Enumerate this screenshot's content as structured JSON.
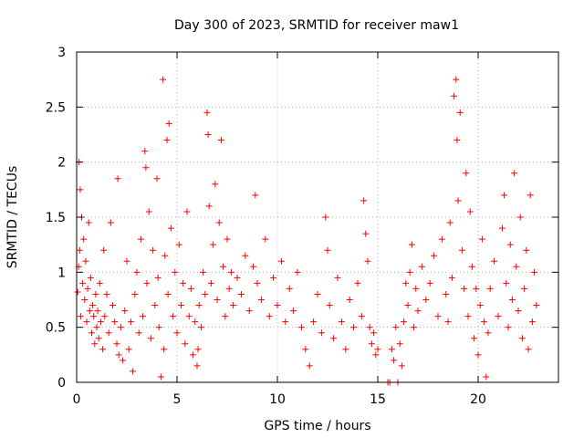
{
  "chart_data": {
    "type": "scatter",
    "title": "Day 300 of 2023, SRMTID for receiver maw1",
    "xlabel": "GPS time / hours",
    "ylabel": "SRMTID / TECUs",
    "xlim": [
      0,
      24
    ],
    "ylim": [
      0,
      3
    ],
    "xticks": [
      "0",
      "5",
      "10",
      "15",
      "20"
    ],
    "yticks": [
      "0",
      "0.5",
      "1",
      "1.5",
      "2",
      "2.5",
      "3"
    ],
    "xtick_values": [
      0,
      5,
      10,
      15,
      20
    ],
    "ytick_values": [
      0,
      0.5,
      1,
      1.5,
      2,
      2.5,
      3
    ],
    "grid": true,
    "marker": "plus",
    "series": [
      {
        "name": "SRMTID",
        "color": "#ff0000",
        "points": [
          [
            0.05,
            0.82
          ],
          [
            0.1,
            1.05
          ],
          [
            0.12,
            2.0
          ],
          [
            0.15,
            1.2
          ],
          [
            0.18,
            1.75
          ],
          [
            0.2,
            0.6
          ],
          [
            0.25,
            1.5
          ],
          [
            0.3,
            0.9
          ],
          [
            0.35,
            1.3
          ],
          [
            0.4,
            0.75
          ],
          [
            0.45,
            1.1
          ],
          [
            0.5,
            0.55
          ],
          [
            0.55,
            0.85
          ],
          [
            0.6,
            1.45
          ],
          [
            0.65,
            0.65
          ],
          [
            0.7,
            0.95
          ],
          [
            0.75,
            0.45
          ],
          [
            0.8,
            0.7
          ],
          [
            0.85,
            0.6
          ],
          [
            0.9,
            0.35
          ],
          [
            0.95,
            0.8
          ],
          [
            1.0,
            0.5
          ],
          [
            1.05,
            0.65
          ],
          [
            1.1,
            0.4
          ],
          [
            1.15,
            0.9
          ],
          [
            1.2,
            0.55
          ],
          [
            1.3,
            0.3
          ],
          [
            1.35,
            1.2
          ],
          [
            1.4,
            0.6
          ],
          [
            1.5,
            0.8
          ],
          [
            1.6,
            0.45
          ],
          [
            1.7,
            1.45
          ],
          [
            1.8,
            0.7
          ],
          [
            1.9,
            0.55
          ],
          [
            2.0,
            0.35
          ],
          [
            2.05,
            1.85
          ],
          [
            2.1,
            0.25
          ],
          [
            2.2,
            0.5
          ],
          [
            2.3,
            0.2
          ],
          [
            2.4,
            0.65
          ],
          [
            2.5,
            1.1
          ],
          [
            2.6,
            0.3
          ],
          [
            2.7,
            0.55
          ],
          [
            2.8,
            0.1
          ],
          [
            2.9,
            0.8
          ],
          [
            3.0,
            1.0
          ],
          [
            3.1,
            0.45
          ],
          [
            3.2,
            1.3
          ],
          [
            3.3,
            0.6
          ],
          [
            3.4,
            2.1
          ],
          [
            3.45,
            1.95
          ],
          [
            3.5,
            0.9
          ],
          [
            3.6,
            1.55
          ],
          [
            3.7,
            0.4
          ],
          [
            3.8,
            1.2
          ],
          [
            3.9,
            0.7
          ],
          [
            4.0,
            1.85
          ],
          [
            4.05,
            0.95
          ],
          [
            4.1,
            0.5
          ],
          [
            4.2,
            0.05
          ],
          [
            4.3,
            2.75
          ],
          [
            4.35,
            0.3
          ],
          [
            4.4,
            1.15
          ],
          [
            4.5,
            2.2
          ],
          [
            4.55,
            0.8
          ],
          [
            4.6,
            2.35
          ],
          [
            4.7,
            1.4
          ],
          [
            4.8,
            0.6
          ],
          [
            4.9,
            1.0
          ],
          [
            5.0,
            0.45
          ],
          [
            5.1,
            1.25
          ],
          [
            5.2,
            0.7
          ],
          [
            5.3,
            0.9
          ],
          [
            5.4,
            0.35
          ],
          [
            5.5,
            1.55
          ],
          [
            5.6,
            0.6
          ],
          [
            5.7,
            0.85
          ],
          [
            5.8,
            0.25
          ],
          [
            5.9,
            0.55
          ],
          [
            6.0,
            0.15
          ],
          [
            6.05,
            0.3
          ],
          [
            6.1,
            0.7
          ],
          [
            6.2,
            0.5
          ],
          [
            6.3,
            1.0
          ],
          [
            6.4,
            0.8
          ],
          [
            6.5,
            2.45
          ],
          [
            6.55,
            2.25
          ],
          [
            6.6,
            1.6
          ],
          [
            6.7,
            0.9
          ],
          [
            6.8,
            1.25
          ],
          [
            6.9,
            1.8
          ],
          [
            7.0,
            0.75
          ],
          [
            7.1,
            1.45
          ],
          [
            7.2,
            2.2
          ],
          [
            7.3,
            1.05
          ],
          [
            7.4,
            0.6
          ],
          [
            7.5,
            1.3
          ],
          [
            7.6,
            0.85
          ],
          [
            7.7,
            1.0
          ],
          [
            7.8,
            0.7
          ],
          [
            8.0,
            0.95
          ],
          [
            8.2,
            0.8
          ],
          [
            8.4,
            1.15
          ],
          [
            8.6,
            0.65
          ],
          [
            8.8,
            1.05
          ],
          [
            8.9,
            1.7
          ],
          [
            9.0,
            0.9
          ],
          [
            9.2,
            0.75
          ],
          [
            9.4,
            1.3
          ],
          [
            9.6,
            0.6
          ],
          [
            9.8,
            0.95
          ],
          [
            10.0,
            0.7
          ],
          [
            10.2,
            1.1
          ],
          [
            10.4,
            0.55
          ],
          [
            10.6,
            0.85
          ],
          [
            10.8,
            0.65
          ],
          [
            11.0,
            1.0
          ],
          [
            11.2,
            0.5
          ],
          [
            11.4,
            0.3
          ],
          [
            11.6,
            0.15
          ],
          [
            11.8,
            0.55
          ],
          [
            12.0,
            0.8
          ],
          [
            12.2,
            0.45
          ],
          [
            12.4,
            1.5
          ],
          [
            12.5,
            1.2
          ],
          [
            12.6,
            0.7
          ],
          [
            12.8,
            0.4
          ],
          [
            13.0,
            0.95
          ],
          [
            13.2,
            0.55
          ],
          [
            13.4,
            0.3
          ],
          [
            13.6,
            0.75
          ],
          [
            13.8,
            0.5
          ],
          [
            14.0,
            0.9
          ],
          [
            14.2,
            0.6
          ],
          [
            14.3,
            1.65
          ],
          [
            14.4,
            1.35
          ],
          [
            14.5,
            1.1
          ],
          [
            14.6,
            0.5
          ],
          [
            14.7,
            0.35
          ],
          [
            14.8,
            0.45
          ],
          [
            14.9,
            0.25
          ],
          [
            15.0,
            0.3
          ],
          [
            15.5,
            0.0
          ],
          [
            15.6,
            0.0
          ],
          [
            15.7,
            0.3
          ],
          [
            15.8,
            0.2
          ],
          [
            15.9,
            0.5
          ],
          [
            16.0,
            0.0
          ],
          [
            16.1,
            0.35
          ],
          [
            16.2,
            0.15
          ],
          [
            16.3,
            0.55
          ],
          [
            16.4,
            0.9
          ],
          [
            16.5,
            0.7
          ],
          [
            16.6,
            1.0
          ],
          [
            16.7,
            1.25
          ],
          [
            16.8,
            0.5
          ],
          [
            16.9,
            0.85
          ],
          [
            17.0,
            0.65
          ],
          [
            17.2,
            1.05
          ],
          [
            17.4,
            0.75
          ],
          [
            17.6,
            0.9
          ],
          [
            17.8,
            1.15
          ],
          [
            18.0,
            0.6
          ],
          [
            18.2,
            1.3
          ],
          [
            18.4,
            0.8
          ],
          [
            18.5,
            0.55
          ],
          [
            18.6,
            1.45
          ],
          [
            18.7,
            0.95
          ],
          [
            18.8,
            2.6
          ],
          [
            18.9,
            2.75
          ],
          [
            18.95,
            2.2
          ],
          [
            19.0,
            1.65
          ],
          [
            19.1,
            2.45
          ],
          [
            19.2,
            1.2
          ],
          [
            19.3,
            0.85
          ],
          [
            19.4,
            1.9
          ],
          [
            19.5,
            0.6
          ],
          [
            19.6,
            1.55
          ],
          [
            19.7,
            1.05
          ],
          [
            19.8,
            0.4
          ],
          [
            19.9,
            0.85
          ],
          [
            20.0,
            0.25
          ],
          [
            20.1,
            0.7
          ],
          [
            20.2,
            1.3
          ],
          [
            20.3,
            0.55
          ],
          [
            20.4,
            0.05
          ],
          [
            20.5,
            0.45
          ],
          [
            20.6,
            0.85
          ],
          [
            20.8,
            1.1
          ],
          [
            21.0,
            0.6
          ],
          [
            21.2,
            1.4
          ],
          [
            21.3,
            1.7
          ],
          [
            21.4,
            0.9
          ],
          [
            21.5,
            0.5
          ],
          [
            21.6,
            1.25
          ],
          [
            21.7,
            0.75
          ],
          [
            21.8,
            1.9
          ],
          [
            21.9,
            1.05
          ],
          [
            22.0,
            0.65
          ],
          [
            22.1,
            1.5
          ],
          [
            22.2,
            0.4
          ],
          [
            22.3,
            0.85
          ],
          [
            22.4,
            1.2
          ],
          [
            22.5,
            0.3
          ],
          [
            22.6,
            1.7
          ],
          [
            22.7,
            0.55
          ],
          [
            22.8,
            1.0
          ],
          [
            22.9,
            0.7
          ]
        ]
      }
    ]
  }
}
